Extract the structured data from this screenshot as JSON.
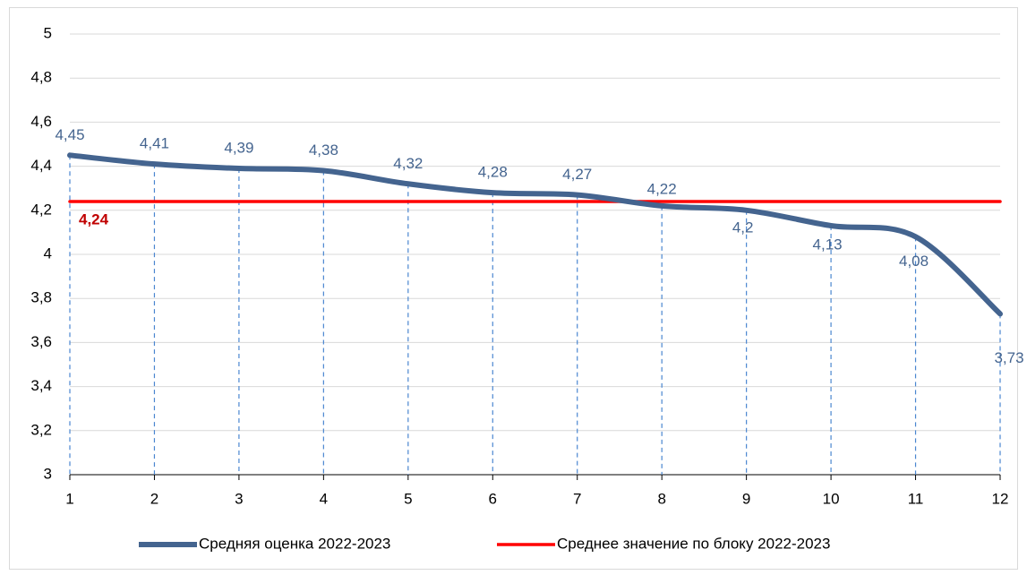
{
  "chart_data": {
    "type": "line",
    "x": [
      1,
      2,
      3,
      4,
      5,
      6,
      7,
      8,
      9,
      10,
      11,
      12
    ],
    "xlim": [
      1,
      12
    ],
    "xticks": [
      1,
      2,
      3,
      4,
      5,
      6,
      7,
      8,
      9,
      10,
      11,
      12
    ],
    "ylim": [
      3,
      5
    ],
    "yticks": [
      3,
      {
        "value": 3.2,
        "label": "3,2"
      },
      {
        "value": 3.4,
        "label": "3,4"
      },
      {
        "value": 3.6,
        "label": "3,6"
      },
      {
        "value": 3.8,
        "label": "3,8"
      },
      4,
      {
        "value": 4.2,
        "label": "4,2"
      },
      {
        "value": 4.4,
        "label": "4,4"
      },
      {
        "value": 4.6,
        "label": "4,6"
      },
      {
        "value": 4.8,
        "label": "4,8"
      },
      5
    ],
    "grid": true,
    "drop_lines": true,
    "legend": "bottom",
    "series": [
      {
        "name": "Средняя оценка 2022-2023",
        "color": "#44648f",
        "smooth": true,
        "values": [
          4.45,
          4.41,
          4.39,
          4.38,
          4.32,
          4.28,
          4.27,
          4.22,
          4.2,
          4.13,
          4.08,
          3.73
        ],
        "value_labels": [
          "4,45",
          "4,41",
          "4,39",
          "4,38",
          "4,32",
          "4,28",
          "4,27",
          "4,22",
          "4,2",
          "4,13",
          "4,08",
          "3,73"
        ]
      },
      {
        "name": "Среднее значение по блоку 2022-2023",
        "color": "#ff0000",
        "label_color": "#c00000",
        "values": [
          4.24,
          4.24,
          4.24,
          4.24,
          4.24,
          4.24,
          4.24,
          4.24,
          4.24,
          4.24,
          4.24,
          4.24
        ],
        "value_labels": [
          "4,24",
          null,
          null,
          null,
          null,
          null,
          null,
          null,
          null,
          null,
          null,
          null
        ]
      }
    ]
  }
}
